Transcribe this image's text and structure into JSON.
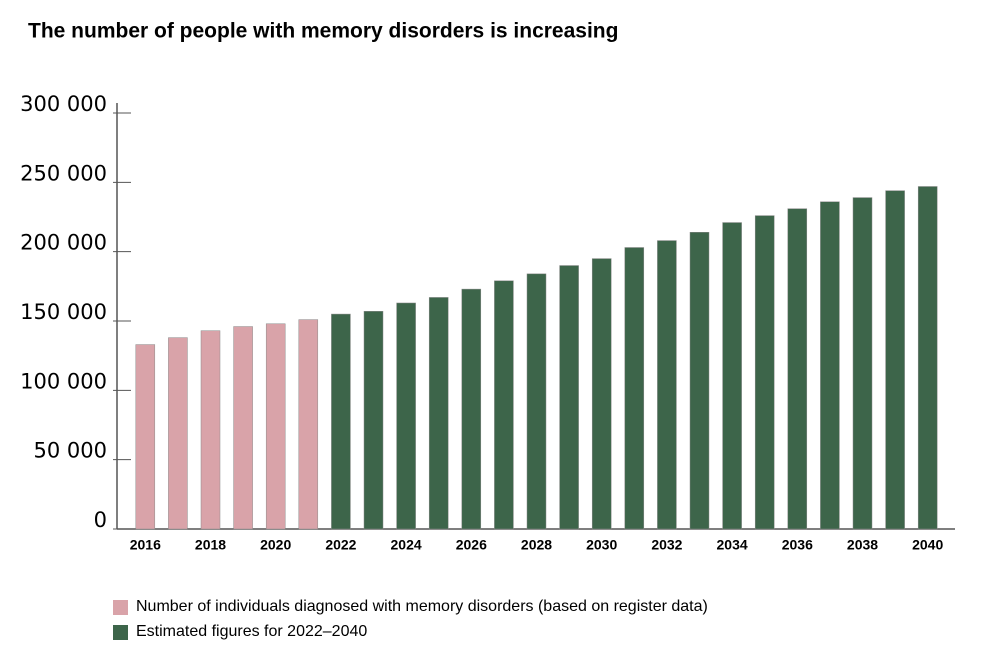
{
  "chart_data": {
    "type": "bar",
    "title": "The number of people with memory disorders is increasing",
    "categories": [
      "2016",
      null,
      "2018",
      null,
      "2020",
      null,
      "2022",
      null,
      "2024",
      null,
      "2026",
      null,
      "2028",
      null,
      "2030",
      null,
      "2032",
      null,
      "2034",
      null,
      "2036",
      null,
      "2038",
      null,
      "2040"
    ],
    "series": [
      {
        "name": "Number  of individuals diagnosed with memory disorders (based on register data)",
        "color": "#d9a3a9",
        "values": [
          133000,
          138000,
          143000,
          146000,
          148000,
          151000,
          null,
          null,
          null,
          null,
          null,
          null,
          null,
          null,
          null,
          null,
          null,
          null,
          null,
          null,
          null,
          null,
          null,
          null,
          null
        ]
      },
      {
        "name": "Estimated figures for 2022–2040",
        "color": "#3d654a",
        "values": [
          null,
          null,
          null,
          null,
          null,
          null,
          155000,
          157000,
          163000,
          167000,
          173000,
          179000,
          184000,
          190000,
          195000,
          203000,
          208000,
          214000,
          221000,
          226000,
          231000,
          236000,
          239000,
          244000,
          247000
        ]
      }
    ],
    "ylim": [
      0,
      300000
    ],
    "yticks": [
      0,
      {
        "value": 50000,
        "label": "50 000"
      },
      {
        "value": 100000,
        "label": "100 000"
      },
      {
        "value": 150000,
        "label": "150 000"
      },
      {
        "value": 200000,
        "label": "200 000"
      },
      {
        "value": 250000,
        "label": "250 000"
      },
      {
        "value": 300000,
        "label": "300 000"
      }
    ]
  }
}
